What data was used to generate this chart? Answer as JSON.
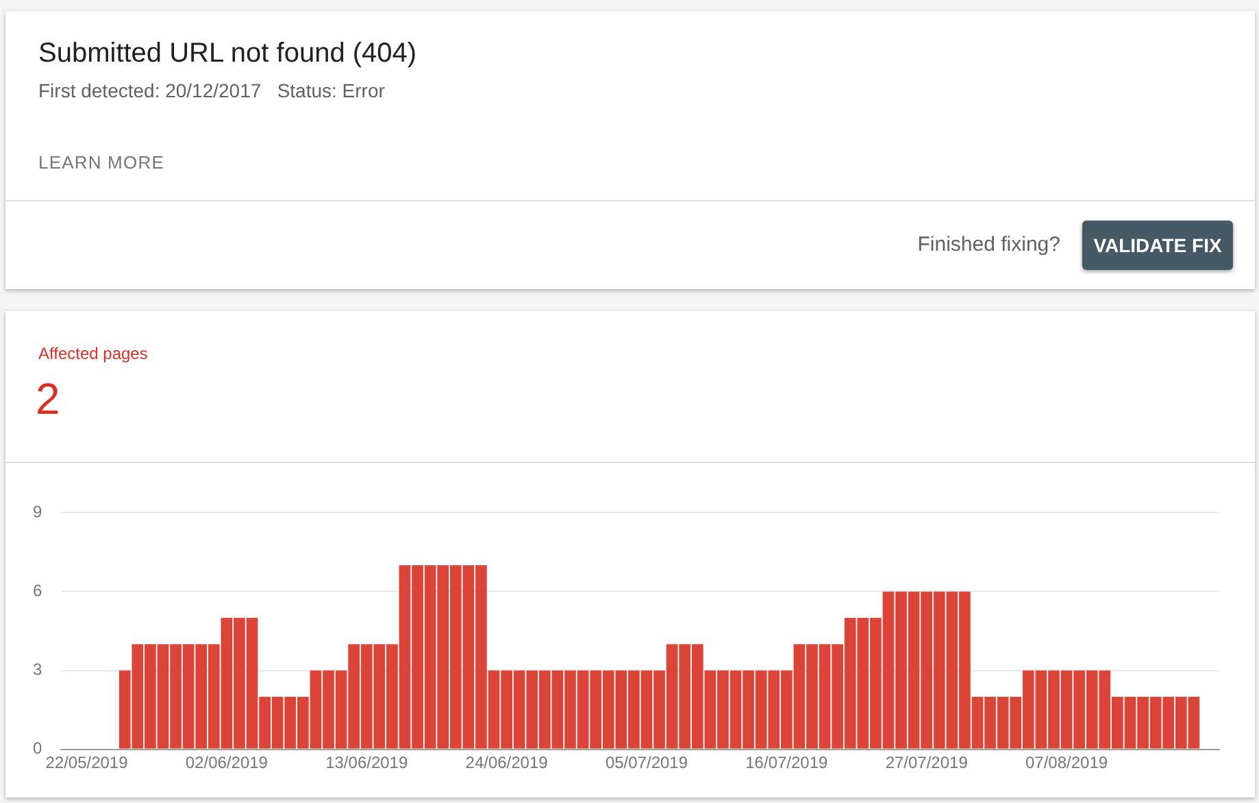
{
  "chart_data": {
    "type": "bar",
    "title": "Submitted URL not found (404)",
    "subtitle": "First detected: 20/12/2017   Status: Error",
    "annotations": [
      "LEARN MORE",
      "Finished fixing?",
      "VALIDATE FIX",
      "Affected pages",
      "2"
    ],
    "x": [
      "2019-05-25",
      "2019-05-26",
      "2019-05-27",
      "2019-05-28",
      "2019-05-29",
      "2019-05-30",
      "2019-05-31",
      "2019-06-01",
      "2019-06-02",
      "2019-06-03",
      "2019-06-04",
      "2019-06-05",
      "2019-06-06",
      "2019-06-07",
      "2019-06-08",
      "2019-06-09",
      "2019-06-10",
      "2019-06-11",
      "2019-06-12",
      "2019-06-13",
      "2019-06-14",
      "2019-06-15",
      "2019-06-16",
      "2019-06-17",
      "2019-06-18",
      "2019-06-19",
      "2019-06-20",
      "2019-06-21",
      "2019-06-22",
      "2019-06-23",
      "2019-06-24",
      "2019-06-25",
      "2019-06-26",
      "2019-06-27",
      "2019-06-28",
      "2019-06-29",
      "2019-06-30",
      "2019-07-01",
      "2019-07-02",
      "2019-07-03",
      "2019-07-04",
      "2019-07-05",
      "2019-07-06",
      "2019-07-07",
      "2019-07-08",
      "2019-07-09",
      "2019-07-10",
      "2019-07-11",
      "2019-07-12",
      "2019-07-13",
      "2019-07-14",
      "2019-07-15",
      "2019-07-16",
      "2019-07-17",
      "2019-07-18",
      "2019-07-19",
      "2019-07-20",
      "2019-07-21",
      "2019-07-22",
      "2019-07-23",
      "2019-07-24",
      "2019-07-25",
      "2019-07-26",
      "2019-07-27",
      "2019-07-28",
      "2019-07-29",
      "2019-07-30",
      "2019-07-31",
      "2019-08-01",
      "2019-08-02",
      "2019-08-03",
      "2019-08-04",
      "2019-08-05",
      "2019-08-06",
      "2019-08-07",
      "2019-08-08",
      "2019-08-09",
      "2019-08-10",
      "2019-08-11",
      "2019-08-12",
      "2019-08-13",
      "2019-08-14",
      "2019-08-15",
      "2019-08-16",
      "2019-08-17"
    ],
    "values": [
      3,
      4,
      4,
      4,
      4,
      4,
      4,
      4,
      5,
      5,
      5,
      2,
      2,
      2,
      2,
      3,
      3,
      3,
      4,
      4,
      4,
      4,
      7,
      7,
      7,
      7,
      7,
      7,
      7,
      3,
      3,
      3,
      3,
      3,
      3,
      3,
      3,
      3,
      3,
      3,
      3,
      3,
      3,
      4,
      4,
      4,
      3,
      3,
      3,
      3,
      3,
      3,
      3,
      4,
      4,
      4,
      4,
      5,
      5,
      5,
      6,
      6,
      6,
      6,
      6,
      6,
      6,
      2,
      2,
      2,
      2,
      3,
      3,
      3,
      3,
      3,
      3,
      3,
      2,
      2,
      2,
      2,
      2,
      2,
      2
    ],
    "color": "#db4437",
    "xlim": [
      "2019-05-20",
      "2019-08-19"
    ],
    "xticks": [
      {
        "value": "2019-05-22",
        "label": "22/05/2019"
      },
      {
        "value": "2019-06-02",
        "label": "02/06/2019"
      },
      {
        "value": "2019-06-13",
        "label": "13/06/2019"
      },
      {
        "value": "2019-06-24",
        "label": "24/06/2019"
      },
      {
        "value": "2019-07-05",
        "label": "05/07/2019"
      },
      {
        "value": "2019-07-16",
        "label": "16/07/2019"
      },
      {
        "value": "2019-07-27",
        "label": "27/07/2019"
      },
      {
        "value": "2019-08-07",
        "label": "07/08/2019"
      }
    ],
    "ylim": [
      0,
      9
    ],
    "yticks": [
      0,
      3,
      6,
      9
    ],
    "grid": "y",
    "legend": false
  }
}
